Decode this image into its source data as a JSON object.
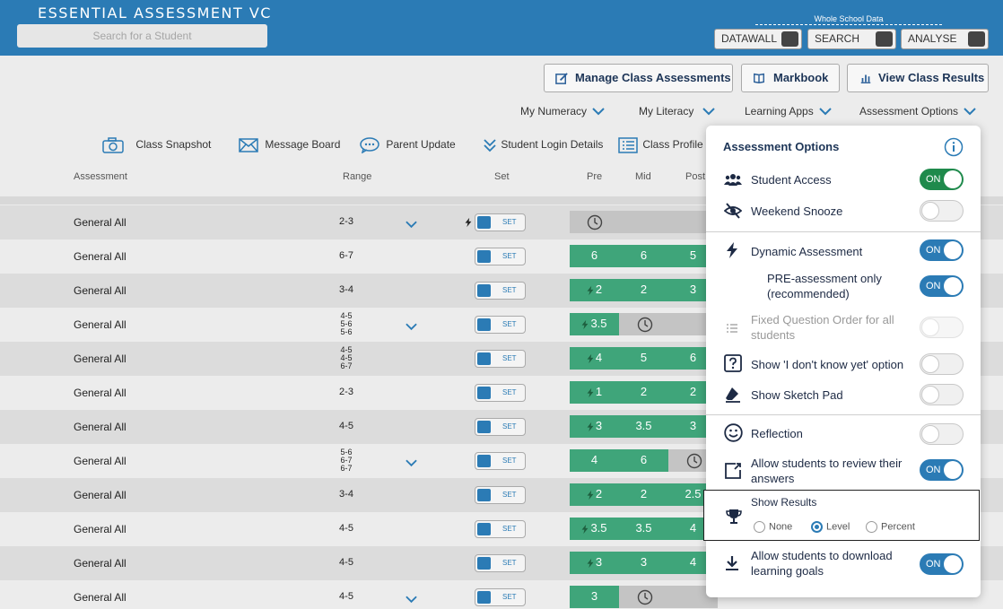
{
  "header": {
    "title": "ESSENTIAL ASSESSMENT VC",
    "search_placeholder": "Search for a Student",
    "whole_school_label": "Whole School Data",
    "nav": [
      "DATAWALL",
      "SEARCH",
      "ANALYSE"
    ]
  },
  "actions": {
    "manage": "Manage Class Assessments",
    "markbook": "Markbook",
    "view_results": "View Class Results"
  },
  "menus": [
    "My Numeracy",
    "My Literacy",
    "Learning Apps",
    "Assessment Options"
  ],
  "toolbar": {
    "snapshot": "Class Snapshot",
    "message": "Message Board",
    "parent": "Parent Update",
    "login": "Student Login Details",
    "profile": "Class Profile"
  },
  "columns": {
    "assessment": "Assessment",
    "range": "Range",
    "set": "Set",
    "pre": "Pre",
    "mid": "Mid",
    "post": "Post"
  },
  "set_label": "SET",
  "rows": [
    {
      "name": "General All",
      "range": [
        "2-3"
      ],
      "chev": true,
      "bolt": true,
      "bar": [
        {
          "t": "clock",
          "w": 170
        }
      ]
    },
    {
      "name": "General All",
      "range": [
        "6-7"
      ],
      "bar": [
        {
          "t": "g",
          "v": "6",
          "w": 55
        },
        {
          "t": "g",
          "v": "6",
          "w": 55
        },
        {
          "t": "g",
          "v": "5",
          "w": 55
        }
      ]
    },
    {
      "name": "General All",
      "range": [
        "3-4"
      ],
      "bar": [
        {
          "t": "g",
          "v": "2",
          "bolt": true,
          "w": 55
        },
        {
          "t": "g",
          "v": "2",
          "w": 55
        },
        {
          "t": "g",
          "v": "3",
          "w": 55
        }
      ]
    },
    {
      "name": "General All",
      "range": [
        "4-5",
        "5-6",
        "5-6"
      ],
      "chev": true,
      "bar": [
        {
          "t": "g",
          "v": "3.5",
          "bolt": true,
          "w": 55
        },
        {
          "t": "clock",
          "w": 110
        }
      ]
    },
    {
      "name": "General All",
      "range": [
        "4-5",
        "4-5",
        "6-7"
      ],
      "bar": [
        {
          "t": "g",
          "v": "4",
          "bolt": true,
          "w": 55
        },
        {
          "t": "g",
          "v": "5",
          "w": 55
        },
        {
          "t": "g",
          "v": "6",
          "w": 55
        }
      ]
    },
    {
      "name": "General All",
      "range": [
        "2-3"
      ],
      "bar": [
        {
          "t": "g",
          "v": "1",
          "bolt": true,
          "w": 55
        },
        {
          "t": "g",
          "v": "2",
          "w": 55
        },
        {
          "t": "g",
          "v": "2",
          "w": 55
        }
      ]
    },
    {
      "name": "General All",
      "range": [
        "4-5"
      ],
      "bar": [
        {
          "t": "g",
          "v": "3",
          "bolt": true,
          "w": 55
        },
        {
          "t": "g",
          "v": "3.5",
          "w": 55
        },
        {
          "t": "g",
          "v": "3",
          "w": 55
        }
      ]
    },
    {
      "name": "General All",
      "range": [
        "5-6",
        "6-7",
        "6-7"
      ],
      "chev": true,
      "bar": [
        {
          "t": "g",
          "v": "4",
          "w": 55
        },
        {
          "t": "g",
          "v": "6",
          "w": 55
        },
        {
          "t": "clock",
          "w": 55
        }
      ]
    },
    {
      "name": "General All",
      "range": [
        "3-4"
      ],
      "bar": [
        {
          "t": "g",
          "v": "2",
          "bolt": true,
          "w": 55
        },
        {
          "t": "g",
          "v": "2",
          "w": 55
        },
        {
          "t": "g",
          "v": "2.5",
          "w": 55
        }
      ]
    },
    {
      "name": "General All",
      "range": [
        "4-5"
      ],
      "bar": [
        {
          "t": "g",
          "v": "3.5",
          "bolt": true,
          "w": 55
        },
        {
          "t": "g",
          "v": "3.5",
          "w": 55
        },
        {
          "t": "g",
          "v": "4",
          "w": 55
        }
      ]
    },
    {
      "name": "General All",
      "range": [
        "4-5"
      ],
      "bar": [
        {
          "t": "g",
          "v": "3",
          "bolt": true,
          "w": 55
        },
        {
          "t": "g",
          "v": "3",
          "w": 55
        },
        {
          "t": "g",
          "v": "4",
          "w": 55
        }
      ]
    },
    {
      "name": "General All",
      "range": [
        "4-5"
      ],
      "chev": true,
      "bar": [
        {
          "t": "g",
          "v": "3",
          "w": 55
        },
        {
          "t": "clock",
          "w": 110
        }
      ]
    }
  ],
  "panel": {
    "title": "Assessment Options",
    "on_label": "ON",
    "student_access": "Student Access",
    "weekend_snooze": "Weekend Snooze",
    "dynamic": "Dynamic Assessment",
    "pre_only": "PRE-assessment only (recommended)",
    "fixed_order": "Fixed Question Order for all students",
    "dont_know": "Show 'I don't know yet' option",
    "sketch": "Show Sketch Pad",
    "reflection": "Reflection",
    "review": "Allow students to review their answers",
    "show_results": "Show Results",
    "result_options": [
      "None",
      "Level",
      "Percent"
    ],
    "download_goals": "Allow students to download learning goals"
  }
}
